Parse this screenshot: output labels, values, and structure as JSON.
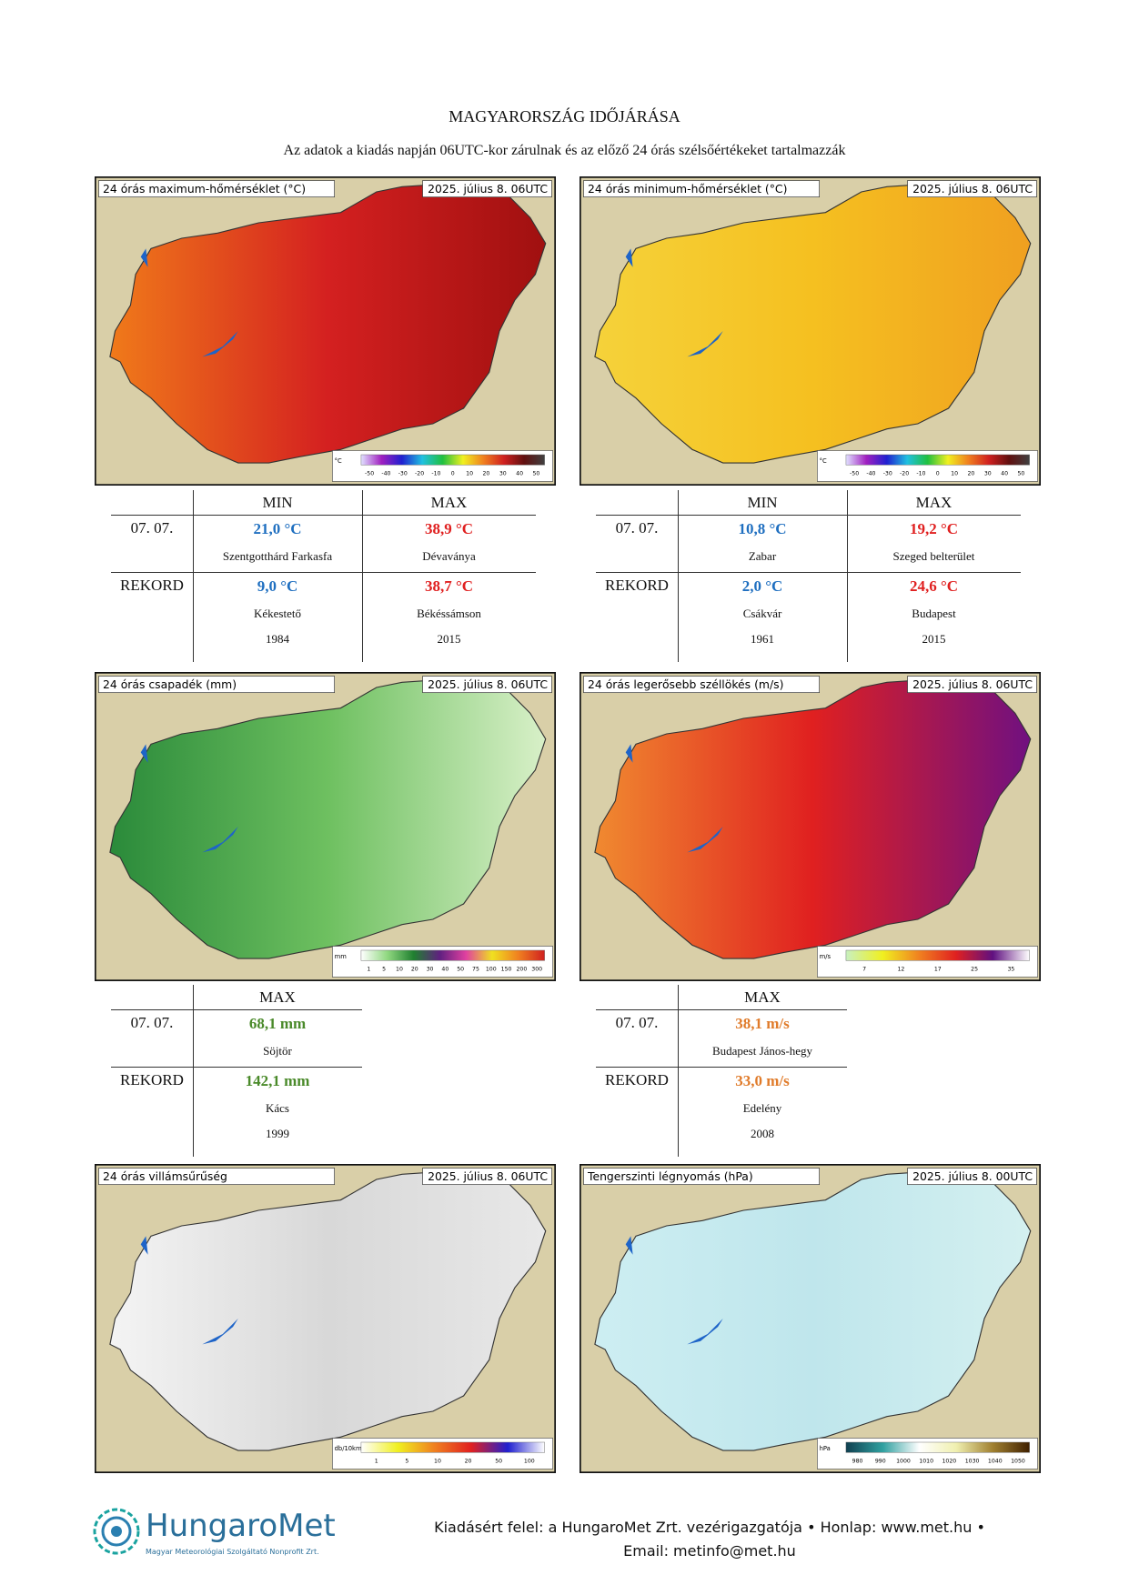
{
  "header": {
    "title": "MAGYARORSZÁG IDŐJÁRÁSA",
    "subtitle": "Az adatok a kiadás napján 06UTC-kor zárulnak és az előző 24 órás szélsőértékeket tartalmazzák"
  },
  "maps": [
    {
      "title": "24 órás maximum-hőmérséklet (°C)",
      "date": "2025. július 8. 06UTC",
      "unit": "°C",
      "ticks": [
        -50,
        -40,
        -30,
        -20,
        -10,
        0,
        10,
        20,
        30,
        40,
        50
      ]
    },
    {
      "title": "24 órás minimum-hőmérséklet (°C)",
      "date": "2025. július 8. 06UTC",
      "unit": "°C",
      "ticks": [
        -50,
        -40,
        -30,
        -20,
        -10,
        0,
        10,
        20,
        30,
        40,
        50
      ]
    },
    {
      "title": "24 órás csapadék (mm)",
      "date": "2025. július 8. 06UTC",
      "unit": "mm",
      "ticks": [
        1,
        5,
        10,
        20,
        30,
        40,
        50,
        75,
        100,
        150,
        200,
        300
      ]
    },
    {
      "title": "24 órás legerősebb széllökés (m/s)",
      "date": "2025. július 8. 06UTC",
      "unit": "m/s",
      "ticks": [
        7,
        12,
        17,
        25,
        35
      ]
    },
    {
      "title": "24 órás villámsűrűség",
      "date": "2025. július 8. 06UTC",
      "unit": "db/10km2",
      "ticks": [
        1,
        5,
        10,
        20,
        50,
        100
      ]
    },
    {
      "title": "Tengerszinti légnyomás (hPa)",
      "date": "2025. július 8. 00UTC",
      "unit": "hPa",
      "ticks": [
        980,
        990,
        1000,
        1010,
        1020,
        1030,
        1040,
        1050
      ]
    }
  ],
  "tables": [
    {
      "headers": [
        "MIN",
        "MAX"
      ],
      "rows": [
        {
          "label": "07. 07.",
          "cells": [
            {
              "value": "21,0 °C",
              "place": "Szentgotthárd Farkasfa"
            },
            {
              "value": "38,9 °C",
              "place": "Dévaványa"
            }
          ]
        },
        {
          "label": "REKORD",
          "cells": [
            {
              "value": "9,0 °C",
              "place": "Kékestető",
              "year": 1984
            },
            {
              "value": "38,7 °C",
              "place": "Békéssámson",
              "year": 2015
            }
          ]
        }
      ]
    },
    {
      "headers": [
        "MIN",
        "MAX"
      ],
      "rows": [
        {
          "label": "07. 07.",
          "cells": [
            {
              "value": "10,8 °C",
              "place": "Zabar"
            },
            {
              "value": "19,2 °C",
              "place": "Szeged belterület"
            }
          ]
        },
        {
          "label": "REKORD",
          "cells": [
            {
              "value": "2,0 °C",
              "place": "Csákvár",
              "year": 1961
            },
            {
              "value": "24,6 °C",
              "place": "Budapest",
              "year": 2015
            }
          ]
        }
      ]
    },
    {
      "headers": [
        "MAX"
      ],
      "rows": [
        {
          "label": "07. 07.",
          "cells": [
            {
              "value": "68,1 mm",
              "place": "Söjtör"
            }
          ]
        },
        {
          "label": "REKORD",
          "cells": [
            {
              "value": "142,1 mm",
              "place": "Kács",
              "year": 1999
            }
          ]
        }
      ]
    },
    {
      "headers": [
        "MAX"
      ],
      "rows": [
        {
          "label": "07. 07.",
          "cells": [
            {
              "value": "38,1 m/s",
              "place": "Budapest János-hegy"
            }
          ]
        },
        {
          "label": "REKORD",
          "cells": [
            {
              "value": "33,0 m/s",
              "place": "Edelény",
              "year": 2008
            }
          ]
        }
      ]
    }
  ],
  "footer": {
    "logo": "HungaroMet",
    "logo_sub": "Magyar Meteorológiai Szolgáltató Nonprofit Zrt.",
    "line1": "Kiadásért felel: a HungaroMet Zrt. vezérigazgatója • Honlap: www.met.hu •",
    "line2": "Email: metinfo@met.hu"
  }
}
